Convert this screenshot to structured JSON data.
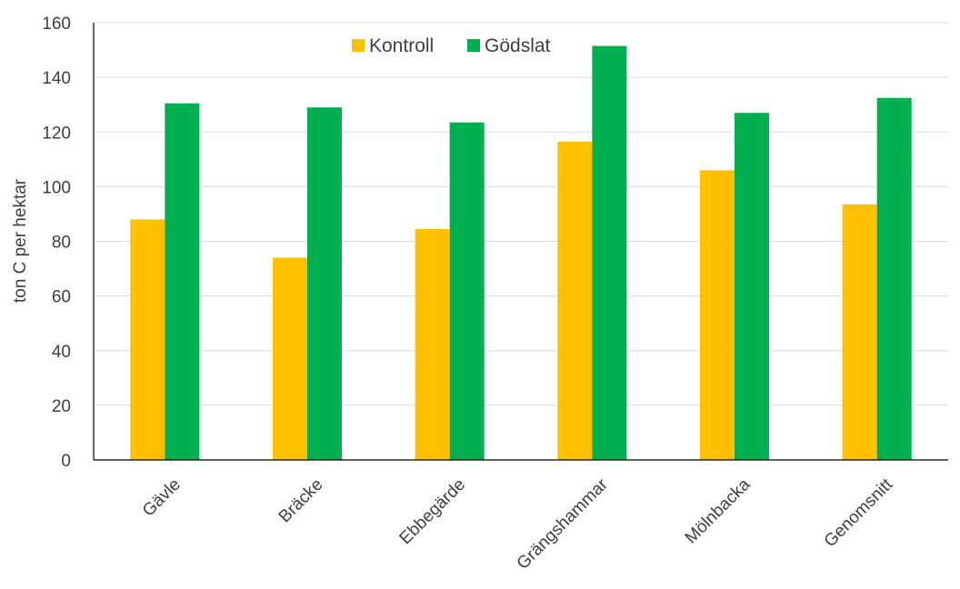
{
  "chart_data": {
    "type": "bar",
    "title": "",
    "xlabel": "",
    "ylabel": "ton C per hektar",
    "ylim": [
      0,
      160
    ],
    "yticks": [
      "0",
      "20",
      "40",
      "60",
      "80",
      "100",
      "120",
      "140",
      "160"
    ],
    "grid": true,
    "legend_position": "top-center",
    "categories": [
      "Gävle",
      "Bräcke",
      "Ebbegärde",
      "Grängshammar",
      "Mölnbacka",
      "Genomsnitt"
    ],
    "series": [
      {
        "name": "Kontroll",
        "color": "#FFC000",
        "values": [
          88,
          74,
          84.5,
          116.5,
          106,
          93.5
        ]
      },
      {
        "name": "Gödslat",
        "color": "#00B050",
        "values": [
          130.5,
          129,
          123.5,
          151.5,
          127,
          132.5
        ]
      }
    ]
  }
}
